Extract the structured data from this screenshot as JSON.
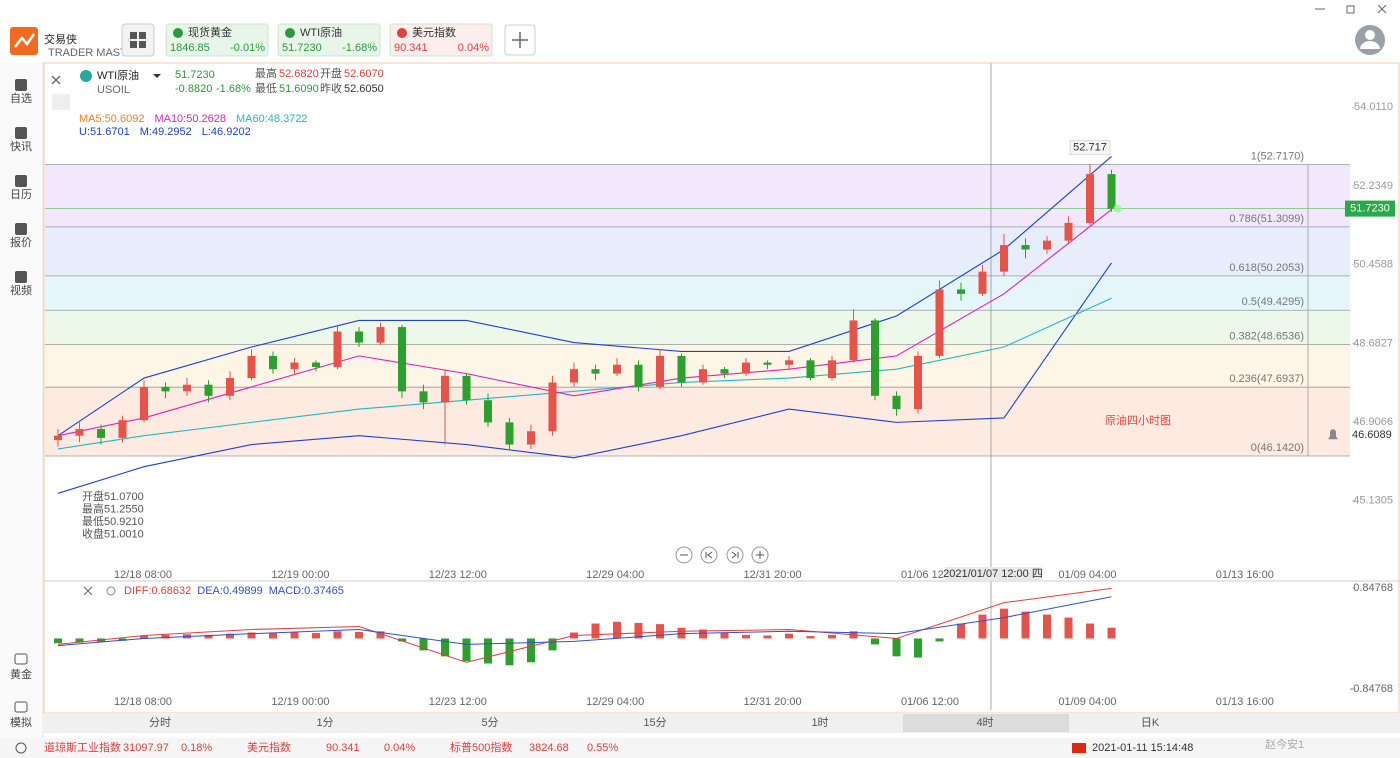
{
  "app": {
    "logo": "交易侠",
    "logo_sub": "TRADER MASTER"
  },
  "tabs": [
    {
      "name": "现货黄金",
      "price": "1846.85",
      "change": "-0.01%",
      "color": "#e8f6e9",
      "text_color": "#2a9a3a"
    },
    {
      "name": "WTI原油",
      "price": "51.7230",
      "change": "-1.68%",
      "color": "#e8f6e9",
      "text_color": "#2a9a3a"
    },
    {
      "name": "美元指数",
      "price": "90.341",
      "change": "0.04%",
      "color": "#fdeeee",
      "text_color": "#e04040"
    }
  ],
  "sidebar": [
    "自选",
    "快讯",
    "日历",
    "报价",
    "视频"
  ],
  "sidebar_bottom": [
    "黄金",
    "模拟"
  ],
  "symbol": {
    "name": "WTI原油",
    "code": "USOIL",
    "price": "51.7230",
    "change": "-0.8820",
    "change_pct": "-1.68%",
    "stats": [
      [
        "最高",
        "52.6820"
      ],
      [
        "开盘",
        "52.6070"
      ],
      [
        "最低",
        "51.6090"
      ],
      [
        "昨收",
        "52.6050"
      ]
    ]
  },
  "indicator_legend": [
    [
      {
        "text": "MA5:50.6092",
        "color": "#f08020"
      },
      {
        "text": "MA10:50.2628",
        "color": "#e020c0"
      },
      {
        "text": "MA60:48.3722",
        "color": "#20b8c8"
      }
    ],
    [
      {
        "text": "U:51.6701",
        "color": "#2040d0"
      },
      {
        "text": "M:49.2952",
        "color": "#2040d0"
      },
      {
        "text": "L:46.9202",
        "color": "#2040d0"
      }
    ]
  ],
  "ohlc_tooltip": [
    [
      "开盘",
      "51.0700"
    ],
    [
      "最高",
      "51.2550"
    ],
    [
      "最低",
      "50.9210"
    ],
    [
      "收盘",
      "51.0010"
    ]
  ],
  "chart_data": {
    "type": "candlestick",
    "annotation": "原油四小时图",
    "up_color": "#e5534b",
    "down_color": "#2ca02c",
    "ylim": [
      43.66,
      55.03
    ],
    "yticks": [
      {
        "value": 54.011,
        "label": "54.0110"
      },
      52.2349,
      50.4588,
      48.6827,
      46.9066,
      45.1305
    ],
    "x_labels": [
      "12/18 08:00",
      "12/19 00:00",
      "12/23 12:00",
      "12/29 04:00",
      "12/31 20:00",
      "01/06 12:00",
      "01/09 04:00",
      "01/13 16:00"
    ],
    "crosshair_label": "2021/01/07 12:00 四",
    "candles": [
      [
        46.5,
        46.75,
        46.35,
        46.6
      ],
      [
        46.6,
        46.9,
        46.45,
        46.75
      ],
      [
        46.75,
        46.85,
        46.4,
        46.55
      ],
      [
        46.55,
        47.05,
        46.45,
        46.95
      ],
      [
        46.95,
        47.85,
        46.9,
        47.7
      ],
      [
        47.7,
        47.8,
        47.45,
        47.6
      ],
      [
        47.6,
        47.9,
        47.5,
        47.75
      ],
      [
        47.75,
        47.85,
        47.35,
        47.5
      ],
      [
        47.5,
        48.05,
        47.4,
        47.9
      ],
      [
        47.9,
        48.55,
        47.85,
        48.4
      ],
      [
        48.4,
        48.5,
        48.0,
        48.1
      ],
      [
        48.1,
        48.35,
        48.0,
        48.25
      ],
      [
        48.25,
        48.3,
        48.05,
        48.15
      ],
      [
        48.15,
        49.1,
        48.1,
        48.95
      ],
      [
        48.95,
        49.05,
        48.6,
        48.7
      ],
      [
        48.7,
        49.15,
        48.65,
        49.05
      ],
      [
        49.05,
        49.1,
        47.45,
        47.6
      ],
      [
        47.6,
        47.75,
        47.2,
        47.35
      ],
      [
        47.35,
        48.1,
        46.4,
        47.95
      ],
      [
        47.95,
        48.0,
        47.3,
        47.4
      ],
      [
        47.4,
        47.55,
        46.8,
        46.9
      ],
      [
        46.9,
        47.0,
        46.3,
        46.4
      ],
      [
        46.4,
        46.85,
        46.3,
        46.7
      ],
      [
        46.7,
        47.95,
        46.6,
        47.8
      ],
      [
        47.8,
        48.25,
        47.7,
        48.1
      ],
      [
        48.1,
        48.2,
        47.85,
        48.0
      ],
      [
        48.0,
        48.35,
        47.95,
        48.2
      ],
      [
        48.2,
        48.3,
        47.6,
        47.7
      ],
      [
        47.7,
        48.55,
        47.65,
        48.4
      ],
      [
        48.4,
        48.45,
        47.7,
        47.8
      ],
      [
        47.8,
        48.2,
        47.75,
        48.1
      ],
      [
        48.1,
        48.15,
        47.9,
        48.0
      ],
      [
        48.0,
        48.35,
        47.95,
        48.25
      ],
      [
        48.25,
        48.3,
        48.1,
        48.2
      ],
      [
        48.2,
        48.4,
        48.1,
        48.3
      ],
      [
        48.3,
        48.35,
        47.85,
        47.9
      ],
      [
        47.9,
        48.4,
        47.85,
        48.3
      ],
      [
        48.3,
        49.45,
        48.25,
        49.2
      ],
      [
        49.2,
        49.25,
        47.4,
        47.5
      ],
      [
        47.5,
        47.6,
        47.05,
        47.2
      ],
      [
        47.2,
        48.5,
        47.1,
        48.4
      ],
      [
        48.4,
        50.1,
        48.35,
        49.9
      ],
      [
        49.9,
        50.05,
        49.65,
        49.8
      ],
      [
        49.8,
        50.45,
        49.75,
        50.3
      ],
      [
        50.3,
        51.15,
        50.2,
        50.9
      ],
      [
        50.9,
        51.05,
        50.6,
        50.8
      ],
      [
        50.8,
        51.1,
        50.7,
        51.0
      ],
      [
        51.0,
        51.55,
        50.95,
        51.4
      ],
      [
        51.4,
        52.72,
        51.35,
        52.5
      ],
      [
        52.5,
        52.6,
        51.65,
        51.72
      ]
    ],
    "overlay_x": [
      1,
      5,
      10,
      15,
      20,
      25,
      30,
      35,
      40,
      45,
      50
    ],
    "overlays": [
      {
        "color": "#2040d0",
        "values": [
          46.6,
          47.9,
          48.6,
          49.2,
          49.2,
          48.7,
          48.5,
          48.5,
          49.3,
          50.8,
          52.9
        ]
      },
      {
        "color": "#2040d0",
        "values": [
          45.3,
          45.9,
          46.4,
          46.6,
          46.4,
          46.1,
          46.6,
          47.2,
          46.9,
          47.0,
          50.5
        ]
      },
      {
        "color": "#20b8c8",
        "values": [
          46.3,
          46.6,
          46.9,
          47.2,
          47.4,
          47.6,
          47.8,
          47.9,
          48.1,
          48.6,
          49.7
        ]
      },
      {
        "color": "#e020c0",
        "values": [
          46.6,
          47.0,
          47.7,
          48.4,
          48.0,
          47.5,
          47.9,
          48.1,
          48.4,
          49.8,
          51.7
        ]
      }
    ],
    "fib_levels": [
      {
        "value": 52.717,
        "label": "1(52.7170)",
        "color": "#efe4fb"
      },
      {
        "value": 51.3099,
        "label": "0.786(51.3099)",
        "color": "#e4eafc"
      },
      {
        "value": 50.2053,
        "label": "0.618(50.2053)",
        "color": "#dff4f9"
      },
      {
        "value": 49.4295,
        "label": "0.5(49.4295)",
        "color": "#e9f7e6"
      },
      {
        "value": 48.6536,
        "label": "0.382(48.6536)",
        "color": "#fdf3e0"
      },
      {
        "value": 47.6937,
        "label": "0.236(47.6937)",
        "color": "#fde8dc"
      },
      {
        "value": 46.142,
        "label": "0(46.1420)"
      }
    ],
    "high_label": 52.717,
    "last_price": {
      "value": 51.723,
      "label": "51.7230"
    },
    "alert": {
      "value": 46.6089,
      "label": "46.6089"
    },
    "macd": {
      "legend": [
        {
          "text": "DIFF:0.68632",
          "color": "#e04040"
        },
        {
          "text": "DEA:0.49899",
          "color": "#3050d0"
        },
        {
          "text": "MACD:0.37465",
          "color": "#3050d0"
        }
      ],
      "ylim": [
        -1.2,
        0.93
      ],
      "yticks": [
        0.84768,
        -0.84768
      ],
      "histogram": [
        -0.08,
        -0.07,
        -0.06,
        -0.04,
        0.05,
        0.06,
        0.07,
        0.06,
        0.08,
        0.1,
        0.09,
        0.1,
        0.09,
        0.12,
        0.11,
        0.12,
        -0.05,
        -0.2,
        -0.3,
        -0.38,
        -0.42,
        -0.45,
        -0.4,
        -0.2,
        0.1,
        0.25,
        0.28,
        0.26,
        0.24,
        0.18,
        0.15,
        0.1,
        0.06,
        0.05,
        0.08,
        0.04,
        0.06,
        0.12,
        -0.1,
        -0.3,
        -0.32,
        -0.05,
        0.25,
        0.4,
        0.5,
        0.45,
        0.4,
        0.35,
        0.25,
        0.18
      ],
      "dif": [
        -0.1,
        0.05,
        0.15,
        0.2,
        -0.4,
        0.05,
        0.12,
        0.15,
        0.0,
        0.6,
        0.84
      ],
      "dea": [
        -0.12,
        0.0,
        0.08,
        0.15,
        -0.1,
        -0.05,
        0.08,
        0.12,
        0.08,
        0.35,
        0.7
      ]
    }
  },
  "timeframes": [
    "分时",
    "1分",
    "5分",
    "15分",
    "1时",
    "4时",
    "日K"
  ],
  "ticker": [
    {
      "name": "道琼斯工业指数",
      "price": "31097.97",
      "change": "0.18%"
    },
    {
      "name": "美元指数",
      "price": "90.341",
      "change": "0.04%"
    },
    {
      "name": "标普500指数",
      "price": "3824.68",
      "change": "0.55%"
    }
  ],
  "datetime": "2021-01-11 15:14:48",
  "watermark": "赵今安1"
}
